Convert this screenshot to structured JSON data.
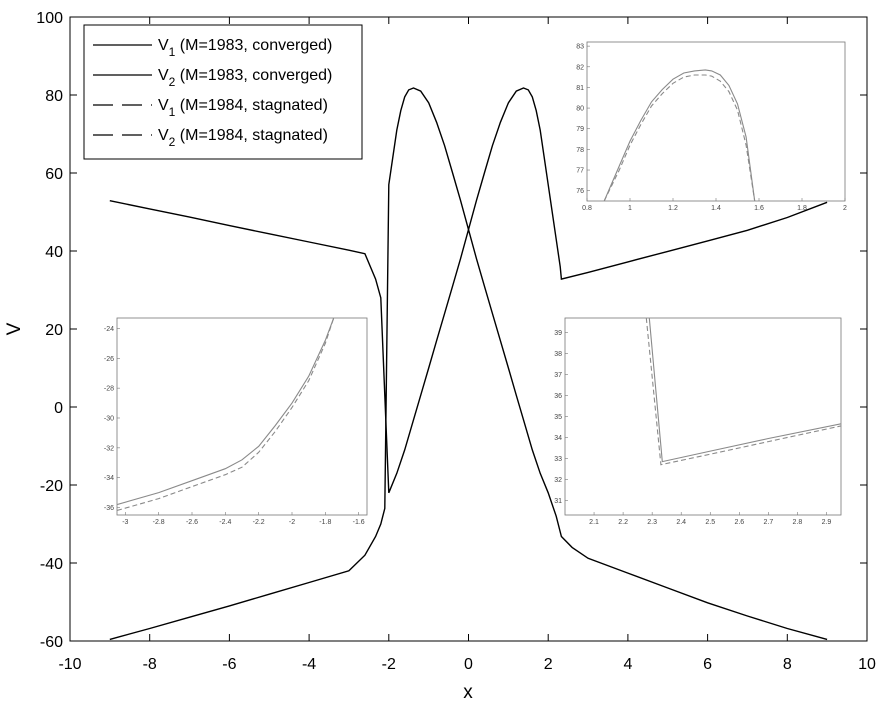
{
  "chart_data": {
    "type": "line",
    "xlabel": "x",
    "ylabel": "V",
    "xlim": [
      -10,
      10
    ],
    "ylim": [
      -60,
      100
    ],
    "xticks": [
      "-10",
      "-8",
      "-6",
      "-4",
      "-2",
      "0",
      "2",
      "4",
      "6",
      "8",
      "10"
    ],
    "yticks": [
      "-60",
      "-40",
      "-20",
      "0",
      "20",
      "40",
      "60",
      "80",
      "100"
    ],
    "grid": false,
    "legend_position": "top-left",
    "legend": [
      {
        "main": "V",
        "sub": "1",
        "rest": " (M=1983, converged)",
        "style": "solid"
      },
      {
        "main": "V",
        "sub": "2",
        "rest": " (M=1983, converged)",
        "style": "solid"
      },
      {
        "main": "V",
        "sub": "1",
        "rest": " (M=1984, stagnated)",
        "style": "dashed"
      },
      {
        "main": "V",
        "sub": "2",
        "rest": " (M=1984, stagnated)",
        "style": "dashed"
      }
    ],
    "colors": {
      "main": "#000000",
      "inset": "#8a8a8a"
    },
    "series": [
      {
        "style": "solid",
        "x": [
          -9,
          -8,
          -7,
          -6,
          -5,
          -4,
          -3,
          -2.6,
          -2.33,
          -2.2,
          -2.0,
          -1.8,
          -1.6,
          -1.4,
          -1.2,
          -1.0,
          -0.8,
          -0.6,
          -0.4,
          -0.2,
          0,
          0.2,
          0.4,
          0.6,
          0.8,
          1.0,
          1.2,
          1.38,
          1.5,
          1.6,
          1.7,
          1.8,
          1.9,
          2.0,
          2.1,
          2.2,
          2.3,
          2.33,
          3,
          4,
          5,
          6,
          7,
          8,
          9
        ],
        "y": [
          52.9,
          50.8,
          48.7,
          46.5,
          44.4,
          42.3,
          40.2,
          39.3,
          32.8,
          28,
          -22,
          -17,
          -11,
          -4,
          3,
          10,
          17,
          24,
          31,
          38,
          45.5,
          53,
          60,
          67,
          73,
          78,
          81,
          81.8,
          81.3,
          79.5,
          76,
          71,
          64,
          57,
          50,
          43,
          36,
          32.8,
          34.5,
          37.2,
          39.9,
          42.6,
          45.3,
          48.6,
          52.5
        ]
      },
      {
        "style": "solid",
        "x": [
          -9,
          -8,
          -7,
          -6,
          -5,
          -4,
          -3,
          -2.6,
          -2.33,
          -2.2,
          -2.1,
          -2.0,
          -1.9,
          -1.8,
          -1.7,
          -1.6,
          -1.5,
          -1.38,
          -1.2,
          -1.0,
          -0.8,
          -0.6,
          -0.4,
          -0.2,
          0,
          0.2,
          0.4,
          0.6,
          0.8,
          1.0,
          1.2,
          1.4,
          1.6,
          1.8,
          2.0,
          2.2,
          2.33,
          2.6,
          3,
          4,
          5,
          6,
          7,
          8,
          9
        ],
        "y": [
          -59.6,
          -56.8,
          -53.9,
          -51,
          -48,
          -45,
          -42,
          -38,
          -33.2,
          -30,
          -26,
          57,
          64,
          71,
          76,
          79.5,
          81.3,
          81.8,
          81,
          78,
          73,
          67,
          60,
          53,
          45.5,
          38,
          31,
          24,
          17,
          10,
          3,
          -4,
          -11,
          -17,
          -22,
          -28,
          -33.2,
          -36,
          -38.8,
          -42.6,
          -46.4,
          -50.2,
          -53.6,
          -56.8,
          -59.6
        ]
      }
    ],
    "insets": [
      {
        "xlim": [
          0.8,
          2
        ],
        "ylim": [
          75.5,
          83.2
        ],
        "xticks": [
          "0.8",
          "1",
          "1.2",
          "1.4",
          "1.6",
          "1.8",
          "2"
        ],
        "yticks": [
          "76",
          "77",
          "78",
          "79",
          "80",
          "81",
          "82",
          "83"
        ],
        "series": [
          {
            "style": "solid",
            "x": [
              0.88,
              0.95,
              1.0,
              1.05,
              1.1,
              1.15,
              1.2,
              1.25,
              1.3,
              1.35,
              1.38,
              1.42,
              1.46,
              1.5,
              1.54,
              1.58
            ],
            "y": [
              75.5,
              77.2,
              78.4,
              79.4,
              80.3,
              80.9,
              81.4,
              81.7,
              81.8,
              81.85,
              81.8,
              81.6,
              81.1,
              80.2,
              78.6,
              75.5
            ]
          },
          {
            "style": "dashed",
            "x": [
              0.88,
              0.95,
              1.0,
              1.05,
              1.1,
              1.15,
              1.2,
              1.25,
              1.3,
              1.35,
              1.38,
              1.42,
              1.46,
              1.5,
              1.54,
              1.58
            ],
            "y": [
              75.5,
              77.0,
              78.2,
              79.2,
              80.1,
              80.7,
              81.2,
              81.5,
              81.6,
              81.6,
              81.55,
              81.3,
              80.8,
              79.9,
              78.2,
              75.5
            ]
          }
        ]
      },
      {
        "xlim": [
          -3.05,
          -1.55
        ],
        "ylim": [
          -36.5,
          -23.3
        ],
        "xticks": [
          "-3",
          "-2.8",
          "-2.6",
          "-2.4",
          "-2.2",
          "-2",
          "-1.8",
          "-1.6"
        ],
        "yticks": [
          "-24",
          "-26",
          "-28",
          "-30",
          "-32",
          "-34",
          "-36"
        ],
        "series": [
          {
            "style": "solid",
            "x": [
              -3.05,
              -2.8,
              -2.6,
              -2.4,
              -2.3,
              -2.2,
              -2.1,
              -2.0,
              -1.9,
              -1.8,
              -1.75
            ],
            "y": [
              -35.8,
              -35.0,
              -34.2,
              -33.4,
              -32.8,
              -31.9,
              -30.5,
              -29.0,
              -27.2,
              -24.8,
              -23.3
            ]
          },
          {
            "style": "dashed",
            "x": [
              -3.05,
              -2.8,
              -2.6,
              -2.4,
              -2.3,
              -2.2,
              -2.1,
              -2.0,
              -1.9,
              -1.8,
              -1.75
            ],
            "y": [
              -36.2,
              -35.4,
              -34.6,
              -33.8,
              -33.3,
              -32.3,
              -30.9,
              -29.3,
              -27.5,
              -25.0,
              -23.3
            ]
          }
        ]
      },
      {
        "xlim": [
          2.0,
          2.95
        ],
        "ylim": [
          30.3,
          39.7
        ],
        "xticks": [
          "2.1",
          "2.2",
          "2.3",
          "2.4",
          "2.5",
          "2.6",
          "2.7",
          "2.8",
          "2.9"
        ],
        "yticks": [
          "31",
          "32",
          "33",
          "34",
          "35",
          "36",
          "37",
          "38",
          "39"
        ],
        "series": [
          {
            "style": "solid",
            "x": [
              2.29,
              2.335,
              2.5,
              2.7,
              2.95
            ],
            "y": [
              39.7,
              32.85,
              33.35,
              33.95,
              34.65
            ]
          },
          {
            "style": "dashed",
            "x": [
              2.28,
              2.33,
              2.5,
              2.7,
              2.95
            ],
            "y": [
              39.7,
              32.7,
              33.2,
              33.8,
              34.55
            ]
          }
        ]
      }
    ]
  }
}
